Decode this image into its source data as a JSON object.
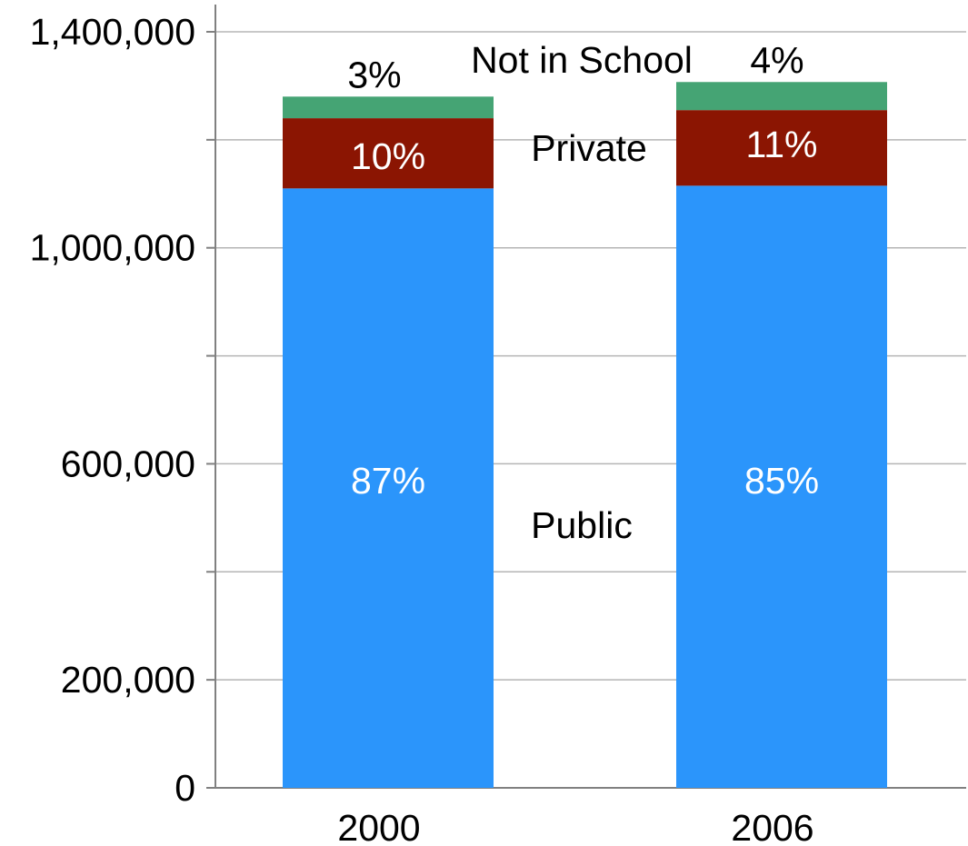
{
  "chart_data": {
    "type": "bar",
    "stacked": true,
    "categories": [
      "2000",
      "2006"
    ],
    "series": [
      {
        "name": "Public",
        "values": [
          1110000,
          1115000
        ],
        "labels": [
          "87%",
          "85%"
        ],
        "color": "#2b95fb",
        "label_color": "#ffffff"
      },
      {
        "name": "Private",
        "values": [
          130000,
          140000
        ],
        "labels": [
          "10%",
          "11%"
        ],
        "color": "#8b1502",
        "label_color": "#ffffff"
      },
      {
        "name": "Not in School",
        "values": [
          40000,
          52000
        ],
        "labels": [
          "3%",
          "4%"
        ],
        "color": "#45a474",
        "label_color": "#000000"
      }
    ],
    "ylim": [
      0,
      1400000
    ],
    "yticks": [
      0,
      200000,
      400000,
      600000,
      800000,
      1000000,
      1200000,
      1400000
    ],
    "ytick_labels": [
      "0",
      "200,000",
      "",
      "600,000",
      "",
      "1,000,000",
      "",
      "1,400,000"
    ],
    "grid": true,
    "title": "",
    "xlabel": "",
    "ylabel": "",
    "legend": "inline-labels-between-bars"
  }
}
